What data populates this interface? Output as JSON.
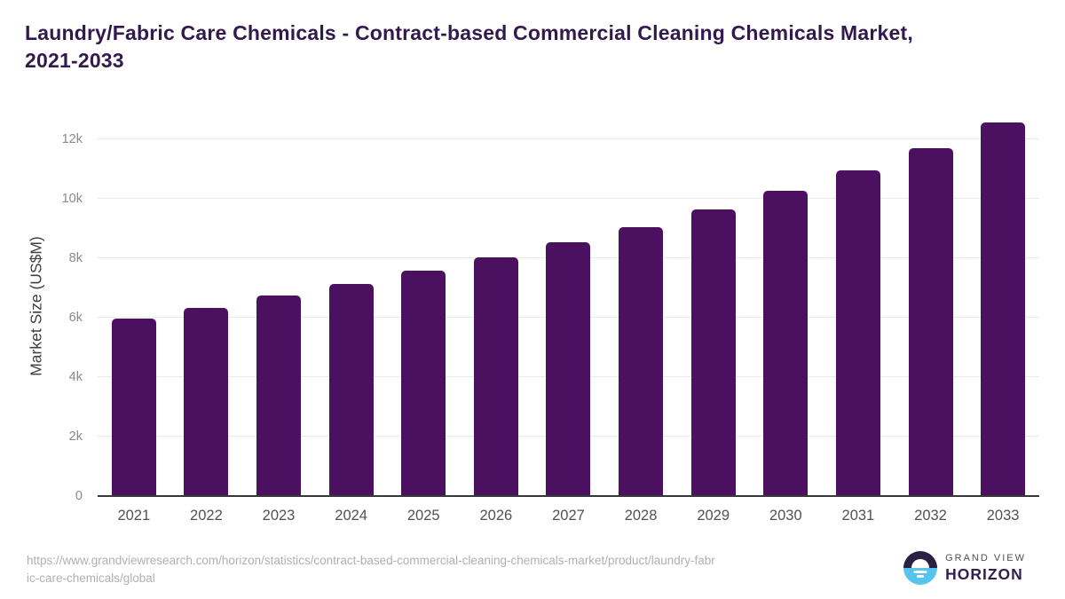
{
  "title": "Laundry/Fabric Care Chemicals - Contract-based Commercial Cleaning Chemicals Market,\n2021-2033",
  "chart_data": {
    "type": "bar",
    "title": "Laundry/Fabric Care Chemicals - Contract-based Commercial Cleaning Chemicals Market, 2021-2033",
    "categories": [
      "2021",
      "2022",
      "2023",
      "2024",
      "2025",
      "2026",
      "2027",
      "2028",
      "2029",
      "2030",
      "2031",
      "2032",
      "2033"
    ],
    "values": [
      5980,
      6340,
      6760,
      7130,
      7590,
      8030,
      8530,
      9050,
      9640,
      10270,
      10960,
      11710,
      12560
    ],
    "xlabel": "",
    "ylabel": "Market Size (US$M)",
    "ytick_labels": [
      "0",
      "2k",
      "4k",
      "6k",
      "8k",
      "10k",
      "12k"
    ],
    "ytick_values": [
      0,
      2000,
      4000,
      6000,
      8000,
      10000,
      12000
    ],
    "ylim": [
      0,
      12840
    ],
    "grid": true,
    "legend": false,
    "bar_color": "#4b1160"
  },
  "footer": {
    "source_url": "https://www.grandviewresearch.com/horizon/statistics/contract-based-commercial-cleaning-chemicals-market/product/laundry-fabr\nic-care-chemicals/global",
    "logo": {
      "brand_line1": "GRAND VIEW",
      "brand_line2": "HORIZON",
      "brand_dark_color": "#2a2041",
      "brand_blue_color": "#57c4f0"
    }
  }
}
